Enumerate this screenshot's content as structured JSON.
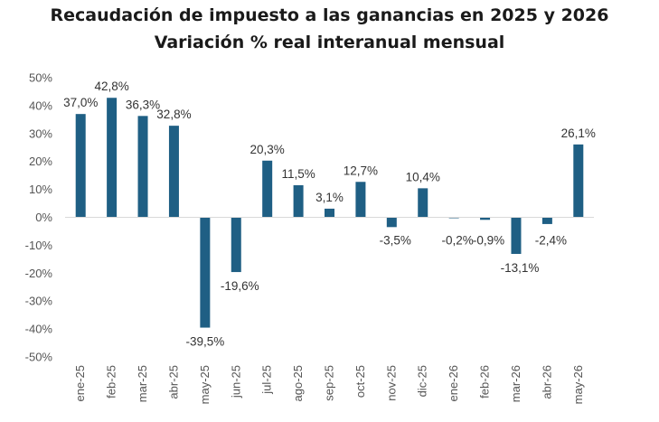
{
  "chart_data": {
    "type": "bar",
    "title": "Recaudación de impuesto a las ganancias en 2025 y 2026",
    "subtitle": "Variación % real interanual mensual",
    "categories": [
      "ene-25",
      "feb-25",
      "mar-25",
      "abr-25",
      "may-25",
      "jun-25",
      "jul-25",
      "ago-25",
      "sep-25",
      "oct-25",
      "nov-25",
      "dic-25",
      "ene-26",
      "feb-26",
      "mar-26",
      "abr-26",
      "may-26"
    ],
    "values": [
      37.0,
      42.8,
      36.3,
      32.8,
      -39.5,
      -19.6,
      20.3,
      11.5,
      3.1,
      12.7,
      -3.5,
      10.4,
      -0.2,
      -0.9,
      -13.1,
      -2.4,
      26.1
    ],
    "data_labels": [
      "37,0%",
      "42,8%",
      "36,3%",
      "32,8%",
      "-39,5%",
      "-19,6%",
      "20,3%",
      "11,5%",
      "3,1%",
      "12,7%",
      "-3,5%",
      "10,4%",
      "-0,2%",
      "-0,9%",
      "-13,1%",
      "-2,4%",
      "26,1%"
    ],
    "y_ticks": [
      "50%",
      "40%",
      "30%",
      "20%",
      "10%",
      "0%",
      "-10%",
      "-20%",
      "-30%",
      "-40%",
      "-50%"
    ],
    "ylim": [
      -50,
      50
    ],
    "bar_color": "#1f5f84",
    "grid": false,
    "legend": "none"
  }
}
